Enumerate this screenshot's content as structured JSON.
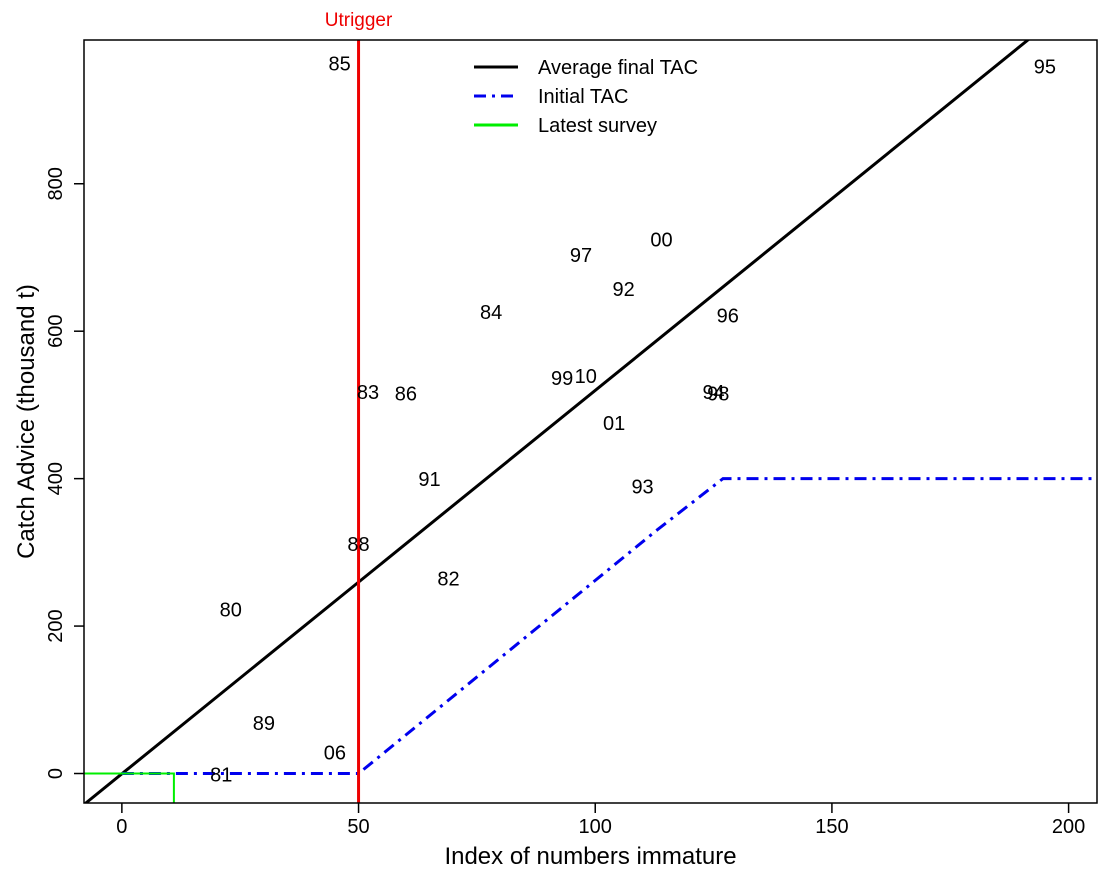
{
  "chart_data": {
    "type": "scatter",
    "title": "",
    "xlabel": "Index of numbers immature",
    "ylabel": "Catch Advice (thousand t)",
    "xlim": [
      -8,
      206
    ],
    "ylim": [
      -40,
      995
    ],
    "xticks": [
      0,
      50,
      100,
      150,
      200
    ],
    "yticks": [
      0,
      200,
      400,
      600,
      800
    ],
    "grid": false,
    "legend_position": "top-center",
    "colors": {
      "average_final_tac": "#000000",
      "initial_tac": "#0000ee",
      "latest_survey": "#00ee00",
      "utrigger": "#ee0000"
    },
    "annotations": [
      {
        "label": "85",
        "x": 46,
        "y": 962
      },
      {
        "label": "95",
        "x": 195,
        "y": 958
      },
      {
        "label": "00",
        "x": 114,
        "y": 723
      },
      {
        "label": "97",
        "x": 97,
        "y": 702
      },
      {
        "label": "92",
        "x": 106,
        "y": 656
      },
      {
        "label": "84",
        "x": 78,
        "y": 625
      },
      {
        "label": "96",
        "x": 128,
        "y": 620
      },
      {
        "label": "99",
        "x": 93,
        "y": 535
      },
      {
        "label": "10",
        "x": 98,
        "y": 538
      },
      {
        "label": "83",
        "x": 52,
        "y": 516
      },
      {
        "label": "86",
        "x": 60,
        "y": 514
      },
      {
        "label": "94",
        "x": 125,
        "y": 516
      },
      {
        "label": "98",
        "x": 126,
        "y": 514
      },
      {
        "label": "01",
        "x": 104,
        "y": 474
      },
      {
        "label": "91",
        "x": 65,
        "y": 398
      },
      {
        "label": "93",
        "x": 110,
        "y": 388
      },
      {
        "label": "88",
        "x": 50,
        "y": 310
      },
      {
        "label": "82",
        "x": 69,
        "y": 263
      },
      {
        "label": "80",
        "x": 23,
        "y": 221
      },
      {
        "label": "89",
        "x": 30,
        "y": 67
      },
      {
        "label": "06",
        "x": 45,
        "y": 27
      },
      {
        "label": "81",
        "x": 21,
        "y": -3
      }
    ],
    "series": [
      {
        "name": "Average final TAC",
        "style": "solid",
        "x": [
          -8,
          206
        ],
        "y": [
          -42,
          1071
        ]
      },
      {
        "name": "Initial TAC",
        "style": "dashdot",
        "x": [
          0,
          50,
          113,
          127,
          206
        ],
        "y": [
          0,
          0,
          330,
          400,
          400
        ]
      },
      {
        "name": "Latest survey",
        "style": "solid",
        "x": [
          -8,
          11,
          11
        ],
        "y": [
          0,
          0,
          -40
        ]
      }
    ],
    "reference_line": {
      "label": "Utrigger",
      "x": 50
    }
  }
}
